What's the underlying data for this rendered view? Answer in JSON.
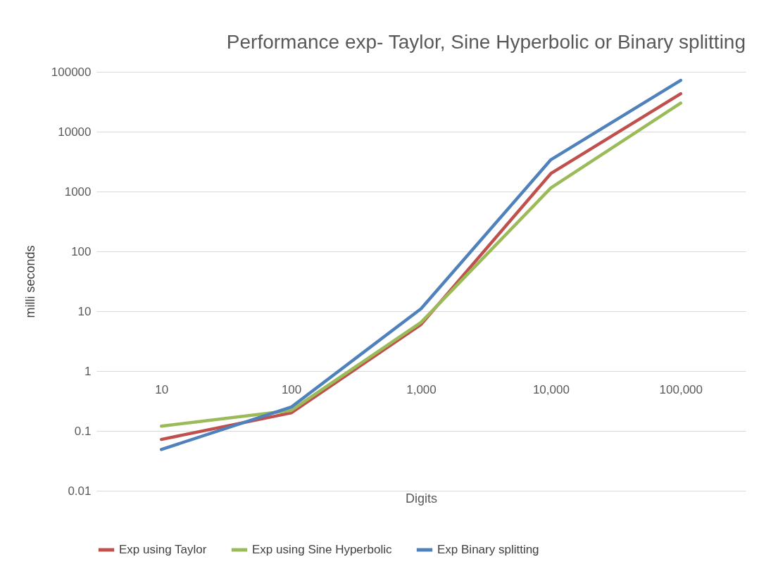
{
  "chart_data": {
    "type": "line",
    "title": "Performance exp- Taylor, Sine Hyperbolic or Binary splitting",
    "xlabel": "Digits",
    "ylabel": "milli seconds",
    "categories": [
      "10",
      "100",
      "1,000",
      "10,000",
      "100,000"
    ],
    "series": [
      {
        "name": "Exp using Taylor",
        "color": "#c0504d",
        "values": [
          0.072,
          0.2,
          6,
          2000,
          43000
        ]
      },
      {
        "name": "Exp using Sine Hyperbolic",
        "color": "#9bbb59",
        "values": [
          0.12,
          0.22,
          6.5,
          1150,
          30000
        ]
      },
      {
        "name": "Exp Binary splitting",
        "color": "#4f81bd",
        "values": [
          0.049,
          0.25,
          11,
          3400,
          72000
        ]
      }
    ],
    "log": true,
    "ylim": [
      0.01,
      100000
    ],
    "yticks": [
      0.01,
      0.1,
      1,
      10,
      100,
      1000,
      10000,
      100000
    ],
    "grid": "y",
    "legend": "bottom",
    "marker": "none",
    "line_style": "solid"
  }
}
